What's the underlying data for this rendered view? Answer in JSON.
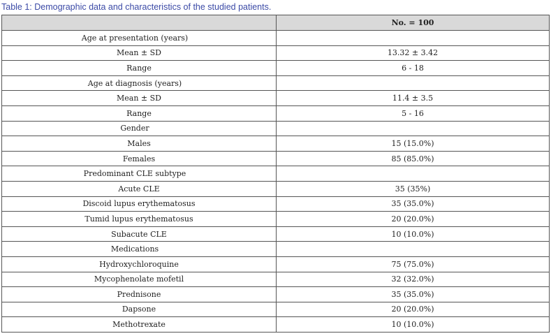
{
  "caption": {
    "label": "Table 1:",
    "text": " Demographic data and characteristics of the studied patients."
  },
  "table": {
    "header": [
      "",
      "No. = 100"
    ],
    "rows": [
      {
        "label": "Age at presentation (years)",
        "value": "",
        "kind": "section",
        "indent": -2
      },
      {
        "label": "Mean ± SD",
        "value": "13.32 ± 3.42",
        "kind": "item",
        "indent": 0
      },
      {
        "label": "Range",
        "value": "6 - 18",
        "kind": "item",
        "indent": 0
      },
      {
        "label": "Age at diagnosis (years)",
        "value": "",
        "kind": "section",
        "indent": -2
      },
      {
        "label": "Mean ± SD",
        "value": "11.4 ± 3.5",
        "kind": "item",
        "indent": 0
      },
      {
        "label": "Range",
        "value": "5 - 16",
        "kind": "item",
        "indent": 0
      },
      {
        "label": "Gender",
        "value": "",
        "kind": "section",
        "indent": 0
      },
      {
        "label": "Males",
        "value": "15 (15.0%)",
        "kind": "item",
        "indent": 0
      },
      {
        "label": "Females",
        "value": "85 (85.0%)",
        "kind": "item",
        "indent": 0
      },
      {
        "label": "Predominant CLE subtype",
        "value": "",
        "kind": "section",
        "indent": 0
      },
      {
        "label": "Acute CLE",
        "value": "35 (35%)",
        "kind": "item",
        "indent": 0
      },
      {
        "label": "Discoid lupus erythematosus",
        "value": "35 (35.0%)",
        "kind": "item",
        "indent": 0
      },
      {
        "label": "Tumid lupus erythematosus",
        "value": "20 (20.0%)",
        "kind": "item",
        "indent": 0
      },
      {
        "label": "Subacute CLE",
        "value": "10 (10.0%)",
        "kind": "item",
        "indent": 0
      },
      {
        "label": "Medications",
        "value": "",
        "kind": "section",
        "indent": 0
      },
      {
        "label": "Hydroxychloroquine",
        "value": "75 (75.0%)",
        "kind": "item",
        "indent": 0
      },
      {
        "label": "Mycophenolate mofetil",
        "value": "32 (32.0%)",
        "kind": "item",
        "indent": 0
      },
      {
        "label": "Prednisone",
        "value": "35 (35.0%)",
        "kind": "item",
        "indent": 0
      },
      {
        "label": "Dapsone",
        "value": "20 (20.0%)",
        "kind": "item",
        "indent": 0
      },
      {
        "label": "Methotrexate",
        "value": "10 (10.0%)",
        "kind": "item",
        "indent": 0
      }
    ]
  }
}
